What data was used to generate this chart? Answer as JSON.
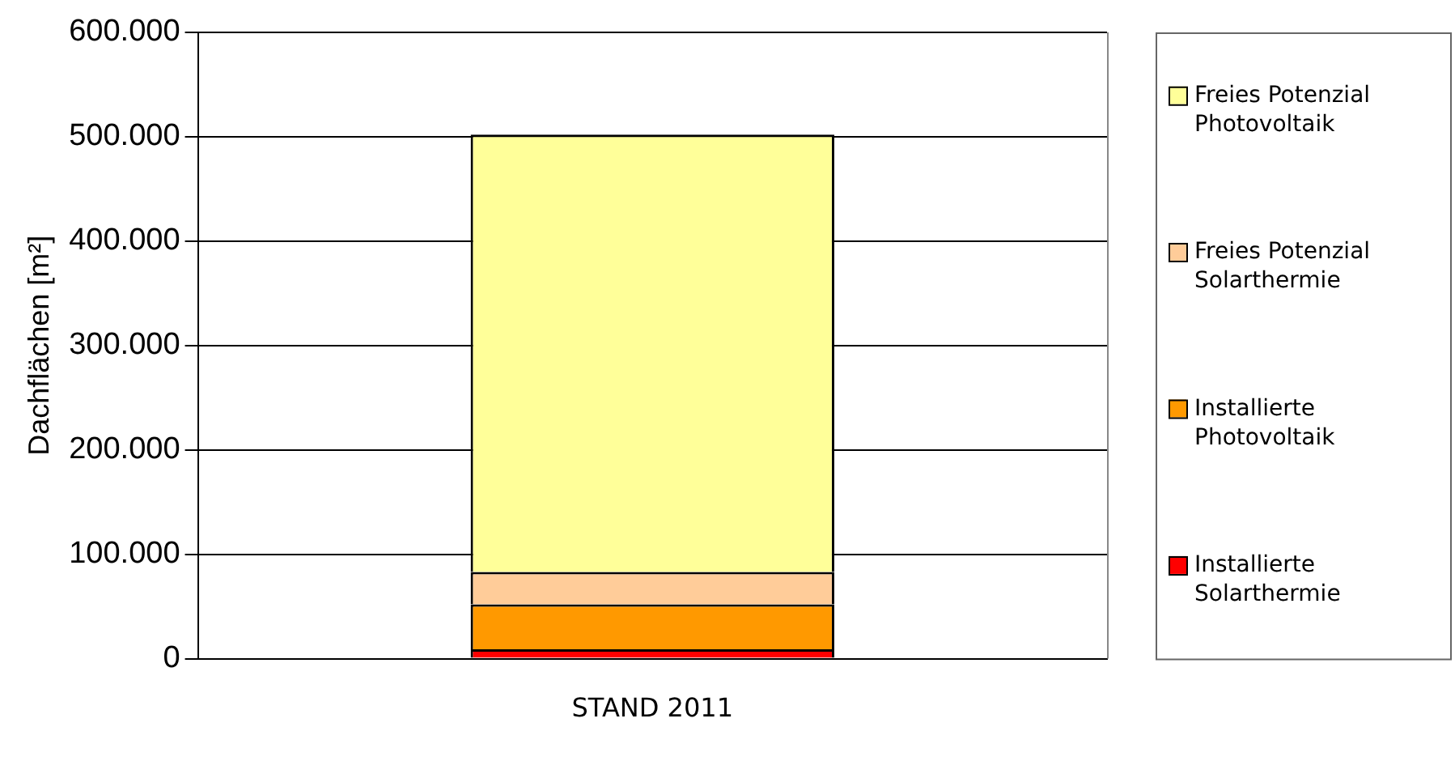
{
  "chart_data": {
    "type": "bar",
    "stacked": true,
    "ylabel": "Dachflächen [m²]",
    "categories": [
      "STAND 2011"
    ],
    "series": [
      {
        "name": "Installierte Solarthermie",
        "color": "#ff0000",
        "values": [
          9000
        ]
      },
      {
        "name": "Installierte Photovoltaik",
        "color": "#ff9900",
        "values": [
          43000
        ]
      },
      {
        "name": "Freies Potenzial Solarthermie",
        "color": "#ffcc99",
        "values": [
          31000
        ]
      },
      {
        "name": "Freies Potenzial Photovoltaik",
        "color": "#ffff99",
        "values": [
          419000
        ]
      }
    ],
    "ylim": [
      0,
      600000
    ],
    "yticks": [
      {
        "value": 0,
        "label": "0"
      },
      {
        "value": 100000,
        "label": "100.000"
      },
      {
        "value": 200000,
        "label": "200.000"
      },
      {
        "value": 300000,
        "label": "300.000"
      },
      {
        "value": 400000,
        "label": "400.000"
      },
      {
        "value": 500000,
        "label": "500.000"
      },
      {
        "value": 600000,
        "label": "600.000"
      }
    ],
    "grid": "y",
    "legend": "right"
  }
}
